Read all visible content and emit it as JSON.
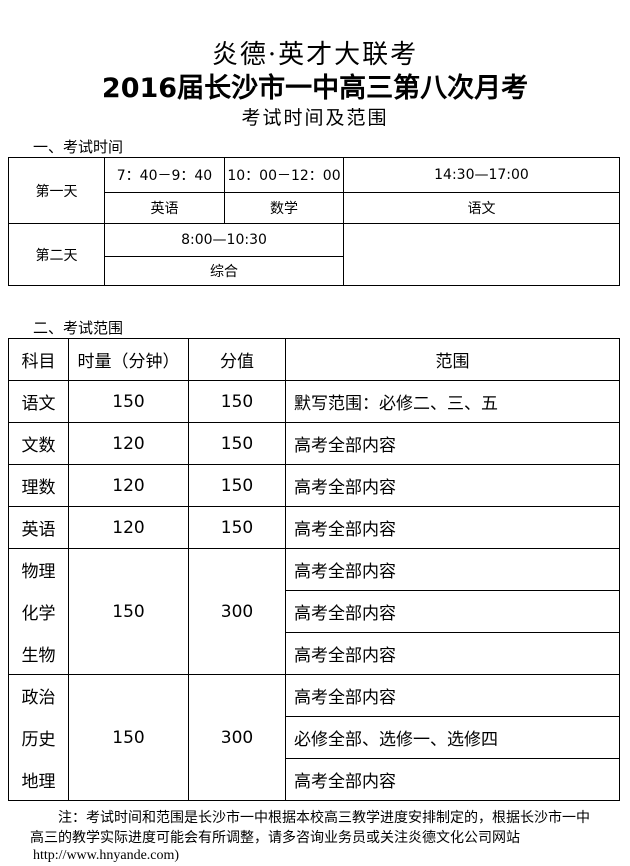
{
  "header": {
    "org": "炎德·英才大联考",
    "title": "2016届长沙市一中高三第八次月考",
    "subtitle": "考试时间及范围"
  },
  "section1": {
    "heading": "一、考试时间",
    "day1": {
      "label": "第一天",
      "slots": [
        {
          "time": "7：40－9：40",
          "subject": "英语"
        },
        {
          "time": "10：00－12：00",
          "subject": "数学"
        },
        {
          "time": "14:30—17:00",
          "subject": "语文"
        }
      ]
    },
    "day2": {
      "label": "第二天",
      "slots": [
        {
          "time": "8:00—10:30",
          "subject": "综合"
        }
      ]
    }
  },
  "section2": {
    "heading": "二、考试范围",
    "headers": [
      "科目",
      "时量（分钟）",
      "分值",
      "范围"
    ],
    "rows": [
      {
        "subject": "语文",
        "time": "150",
        "score": "150",
        "scope": "默写范围：必修二、三、五"
      },
      {
        "subject": "文数",
        "time": "120",
        "score": "150",
        "scope": "高考全部内容"
      },
      {
        "subject": "理数",
        "time": "120",
        "score": "150",
        "scope": "高考全部内容"
      },
      {
        "subject": "英语",
        "time": "120",
        "score": "150",
        "scope": "高考全部内容"
      }
    ],
    "science": {
      "subjects": [
        "物理",
        "化学",
        "生物"
      ],
      "time": "150",
      "score": "300",
      "scopes": [
        "高考全部内容",
        "高考全部内容",
        "高考全部内容"
      ]
    },
    "liberal": {
      "subjects": [
        "政治",
        "历史",
        "地理"
      ],
      "time": "150",
      "score": "300",
      "scopes": [
        "高考全部内容",
        "必修全部、选修一、选修四",
        "高考全部内容"
      ]
    }
  },
  "note": {
    "text": "注：考试时间和范围是长沙市一中根据本校高三教学进度安排制定的，根据长沙市一中高三的教学实际进度可能会有所调整，请多咨询业务员或关注炎德文化公司网站",
    "url": "http://www.hnyande.com)"
  }
}
